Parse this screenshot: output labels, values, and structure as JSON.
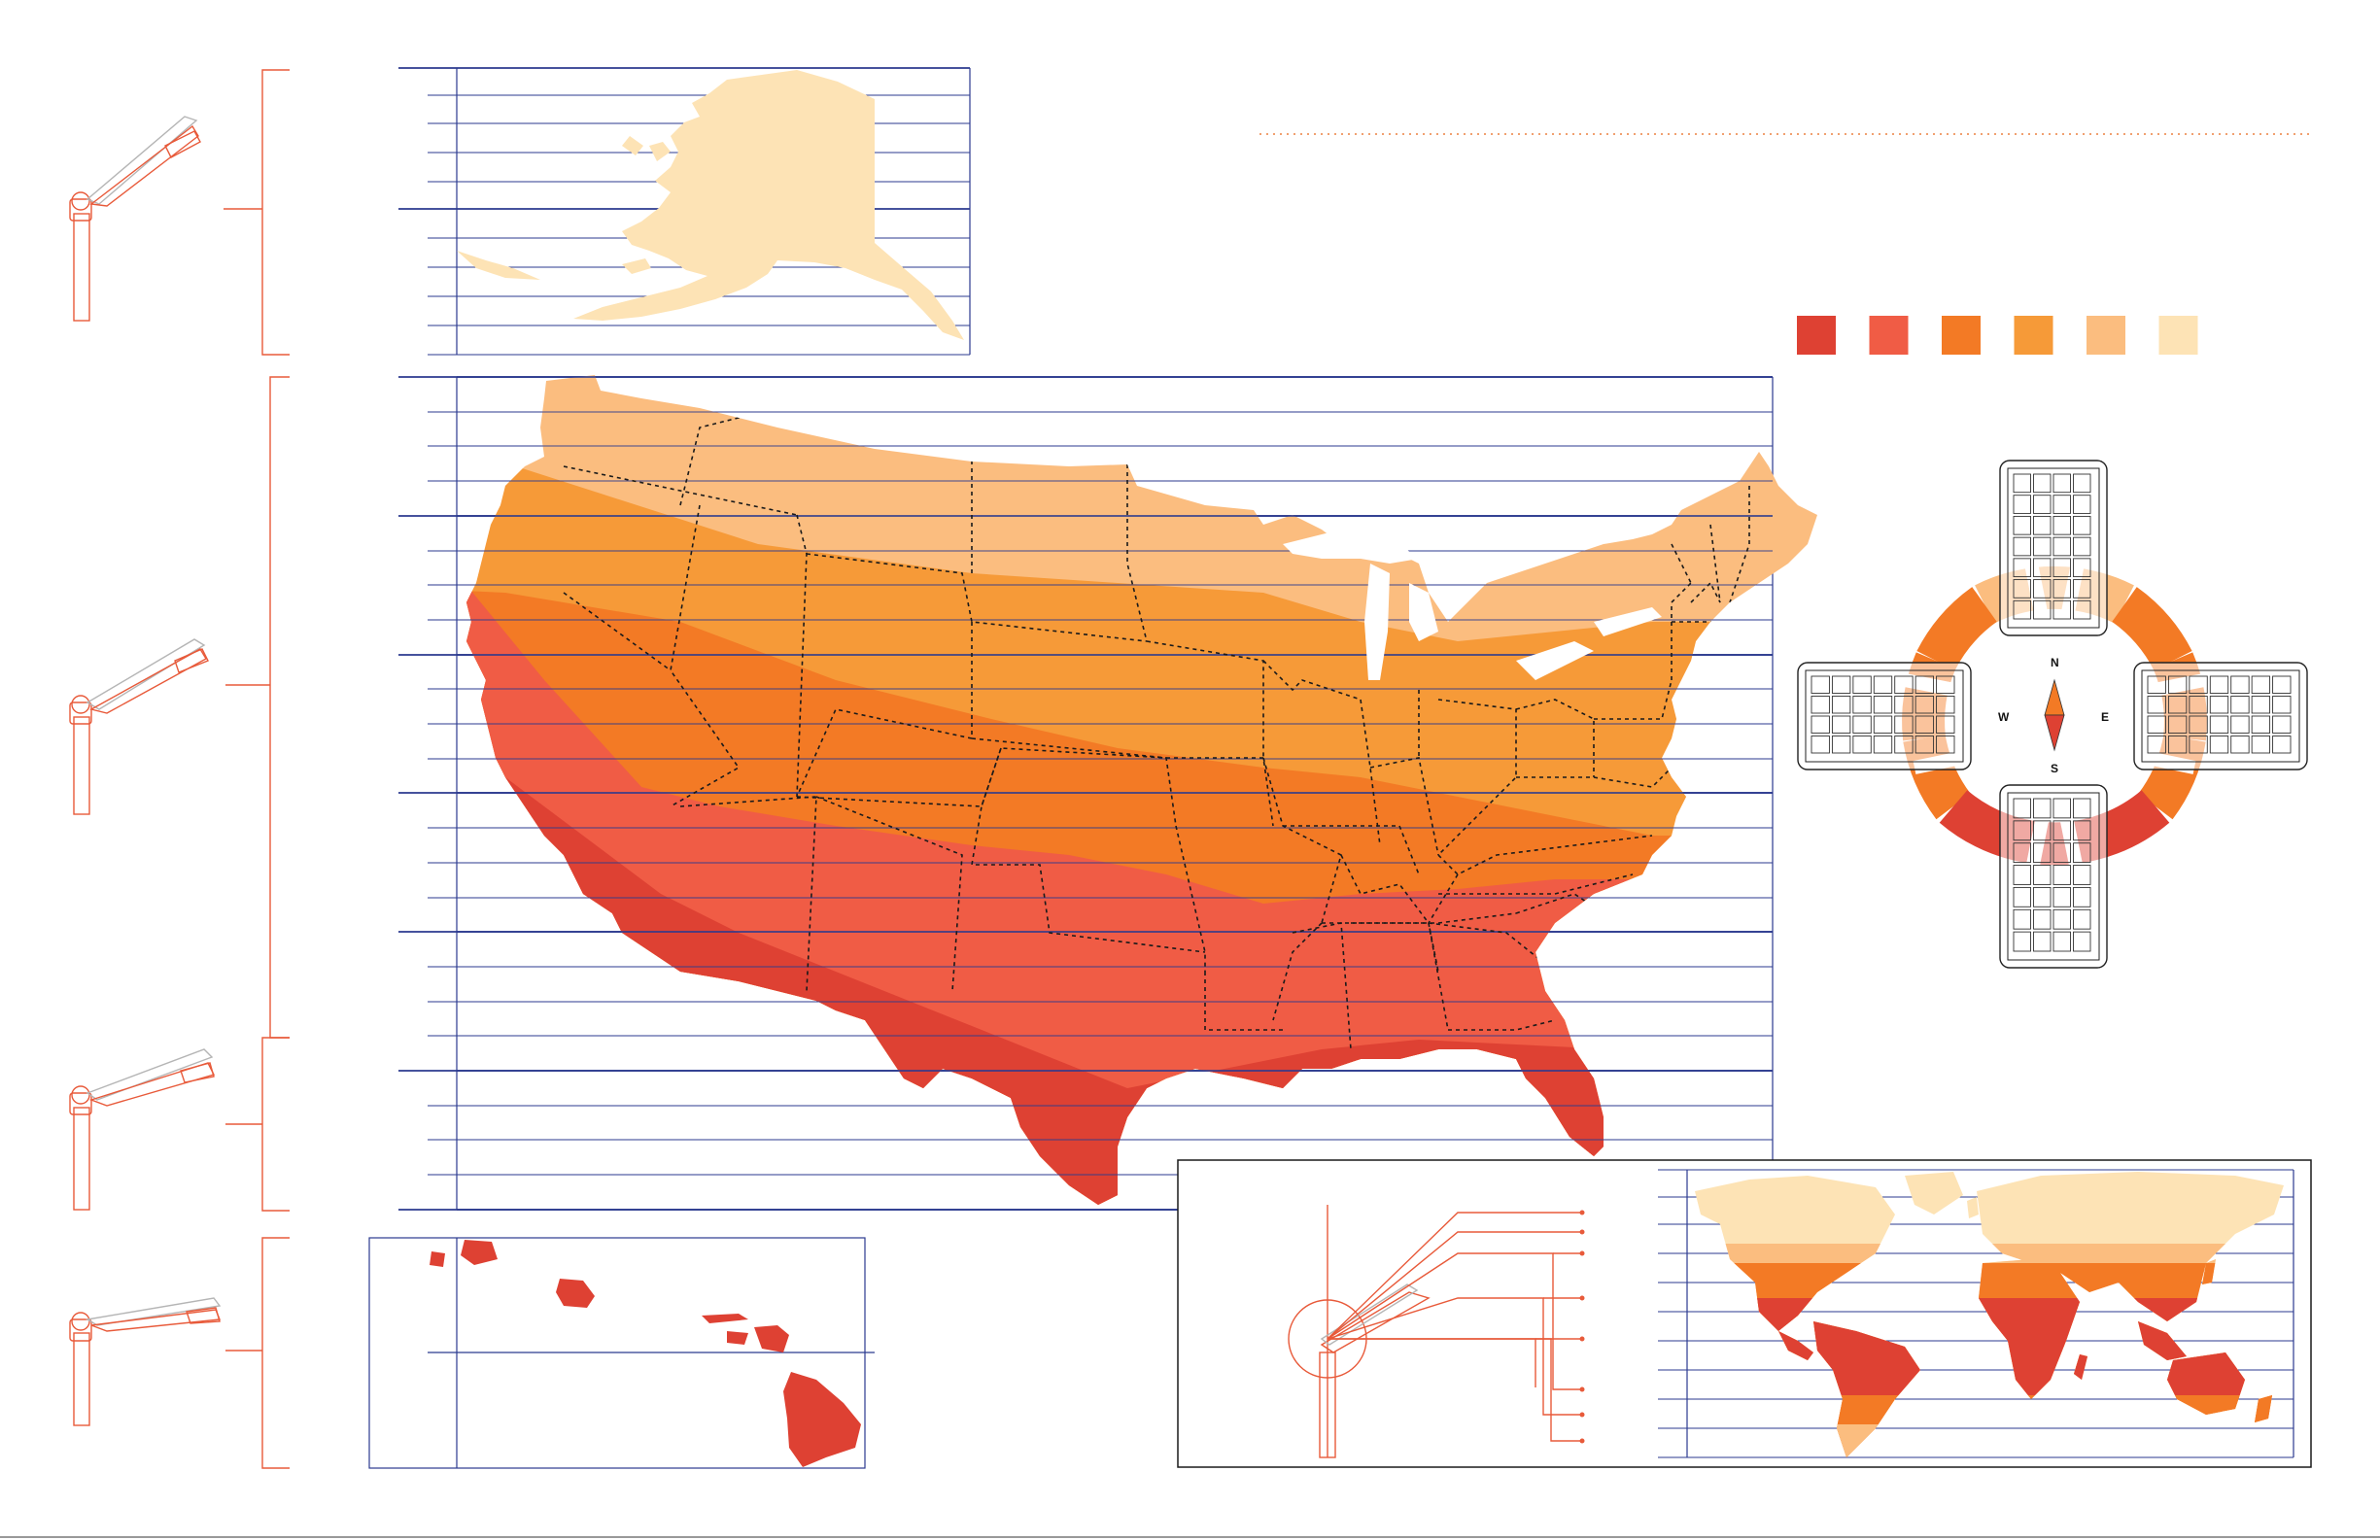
{
  "palette": {
    "line_navy": "#2b3a8f",
    "accent_red": "#e85a3a",
    "dotted_rule": "#f0a070"
  },
  "legend": {
    "swatches": [
      {
        "color": "#de4133"
      },
      {
        "color": "#f05c45"
      },
      {
        "color": "#f37a25"
      },
      {
        "color": "#f69a38"
      },
      {
        "color": "#fbbd7f"
      },
      {
        "color": "#fde3b5"
      }
    ]
  },
  "zones": {
    "north": "#fbbd7f",
    "upper_mid": "#f69a38",
    "mid": "#f37a25",
    "lower_mid": "#f05c45",
    "south": "#de4133",
    "alaska": "#fde3b5"
  },
  "compass": {
    "north": "N",
    "south": "S",
    "east": "E",
    "west": "W",
    "ring_colors": [
      "#fbbd7f",
      "#f37a25",
      "#de4133"
    ]
  },
  "fixture_icons": [
    "streetlight-tilt-1",
    "streetlight-tilt-2",
    "streetlight-tilt-3",
    "streetlight-tilt-4"
  ],
  "world_map": {
    "bands": [
      "#fde3b5",
      "#fbbd7f",
      "#f37a25",
      "#de4133"
    ]
  }
}
